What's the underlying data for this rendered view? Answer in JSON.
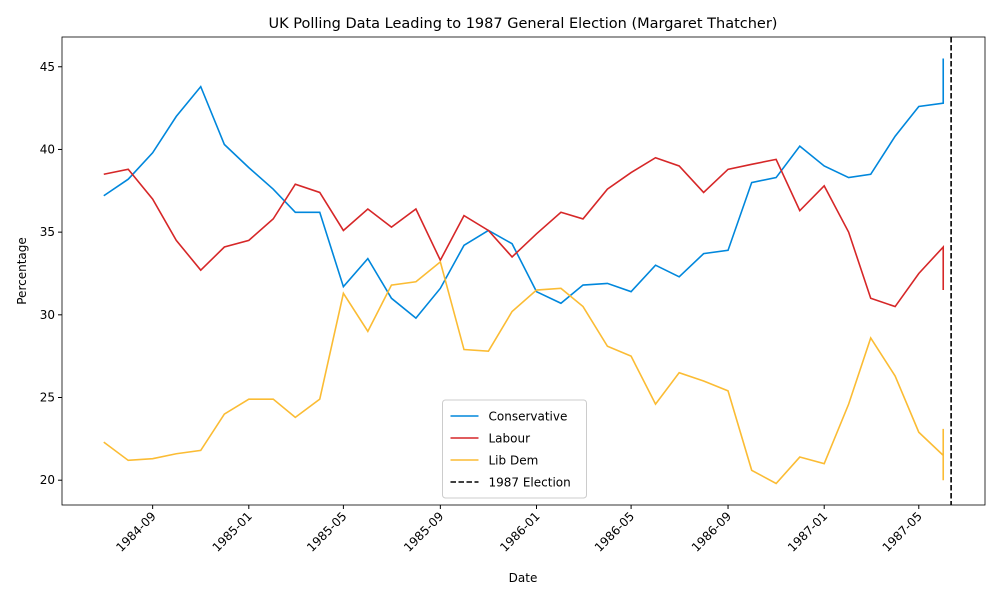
{
  "chart_data": {
    "type": "line",
    "title": "UK Polling Data Leading to 1987 General Election (Margaret Thatcher)",
    "xlabel": "Date",
    "ylabel": "Percentage",
    "series": [
      {
        "name": "Conservative",
        "color": "#0087dc",
        "x": [
          "1984-07",
          "1984-08",
          "1984-09",
          "1984-10",
          "1984-11",
          "1984-12",
          "1985-01",
          "1985-02",
          "1985-03",
          "1985-04",
          "1985-05",
          "1985-06",
          "1985-07",
          "1985-08",
          "1985-09",
          "1985-10",
          "1985-11",
          "1985-12",
          "1986-01",
          "1986-02",
          "1986-03",
          "1986-04",
          "1986-05",
          "1986-06",
          "1986-07",
          "1986-08",
          "1986-09",
          "1986-10",
          "1986-11",
          "1986-12",
          "1987-01",
          "1987-02",
          "1987-03",
          "1987-04",
          "1987-05",
          "1987-06",
          "1987-06"
        ],
        "values": [
          37.2,
          38.2,
          39.8,
          42.0,
          43.8,
          40.3,
          38.9,
          37.6,
          36.2,
          36.2,
          31.7,
          33.4,
          31.0,
          29.8,
          31.6,
          34.2,
          35.1,
          34.3,
          31.4,
          30.7,
          31.8,
          31.9,
          31.4,
          33.0,
          32.3,
          33.7,
          33.9,
          38.0,
          38.3,
          40.2,
          39.0,
          38.3,
          38.5,
          40.8,
          42.6,
          42.8,
          45.5
        ]
      },
      {
        "name": "Labour",
        "color": "#d62728",
        "x": [
          "1984-07",
          "1984-08",
          "1984-09",
          "1984-10",
          "1984-11",
          "1984-12",
          "1985-01",
          "1985-02",
          "1985-03",
          "1985-04",
          "1985-05",
          "1985-06",
          "1985-07",
          "1985-08",
          "1985-09",
          "1985-10",
          "1985-11",
          "1985-12",
          "1986-01",
          "1986-02",
          "1986-03",
          "1986-04",
          "1986-05",
          "1986-06",
          "1986-07",
          "1986-08",
          "1986-09",
          "1986-10",
          "1986-11",
          "1986-12",
          "1987-01",
          "1987-02",
          "1987-03",
          "1987-04",
          "1987-05",
          "1987-06",
          "1987-06"
        ],
        "values": [
          38.5,
          38.8,
          37.0,
          34.5,
          32.7,
          34.1,
          34.5,
          35.8,
          37.9,
          37.4,
          35.1,
          36.4,
          35.3,
          36.4,
          33.3,
          36.0,
          35.1,
          33.5,
          34.9,
          36.2,
          35.8,
          37.6,
          38.6,
          39.5,
          39.0,
          37.4,
          38.8,
          39.1,
          39.4,
          36.3,
          37.8,
          35.0,
          31.0,
          30.5,
          32.5,
          34.1,
          31.5
        ]
      },
      {
        "name": "Lib Dem",
        "color": "#fbbc34",
        "x": [
          "1984-07",
          "1984-08",
          "1984-09",
          "1984-10",
          "1984-11",
          "1984-12",
          "1985-01",
          "1985-02",
          "1985-03",
          "1985-04",
          "1985-05",
          "1985-06",
          "1985-07",
          "1985-08",
          "1985-09",
          "1985-10",
          "1985-11",
          "1985-12",
          "1986-01",
          "1986-02",
          "1986-03",
          "1986-04",
          "1986-05",
          "1986-06",
          "1986-07",
          "1986-08",
          "1986-09",
          "1986-10",
          "1986-11",
          "1986-12",
          "1987-01",
          "1987-02",
          "1987-03",
          "1987-04",
          "1987-05",
          "1987-06",
          "1987-06",
          "1987-06"
        ],
        "values": [
          22.3,
          21.2,
          21.3,
          21.6,
          21.8,
          24.0,
          24.9,
          24.9,
          23.8,
          24.9,
          31.3,
          29.0,
          31.8,
          32.0,
          33.2,
          27.9,
          27.8,
          30.2,
          31.5,
          31.6,
          30.5,
          28.1,
          27.5,
          24.6,
          26.5,
          26.0,
          25.4,
          20.6,
          19.8,
          21.4,
          21.0,
          24.6,
          28.6,
          26.3,
          22.9,
          21.5,
          23.1,
          20.0
        ]
      }
    ],
    "vline": {
      "x": "1987-06-11",
      "label": "1987 Election",
      "color": "#000000",
      "style": "dashed"
    },
    "xlim": [
      "1984-05-09",
      "1987-07-24"
    ],
    "xticks": [
      "1984-09",
      "1985-01",
      "1985-05",
      "1985-09",
      "1986-01",
      "1986-05",
      "1986-09",
      "1987-01",
      "1987-05"
    ],
    "ylim": [
      18.5,
      46.8
    ],
    "yticks": [
      20,
      25,
      30,
      35,
      40,
      45
    ],
    "grid": false,
    "legend": "lower center"
  }
}
